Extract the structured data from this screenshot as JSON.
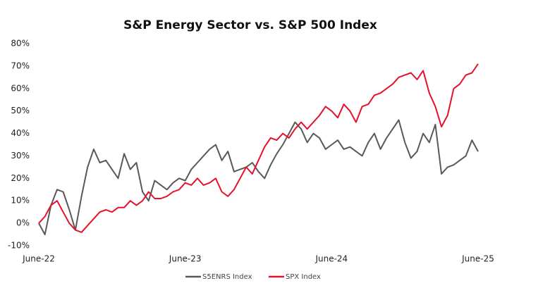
{
  "chart_data": {
    "type": "line",
    "title": "S&P Energy Sector vs. S&P 500 Index",
    "categories": [
      "June-22",
      null,
      null,
      null,
      null,
      null,
      null,
      null,
      null,
      null,
      null,
      null,
      null,
      null,
      null,
      null,
      null,
      null,
      null,
      null,
      null,
      null,
      null,
      null,
      "June-23",
      null,
      null,
      null,
      null,
      null,
      null,
      null,
      null,
      null,
      null,
      null,
      null,
      null,
      null,
      null,
      null,
      null,
      null,
      null,
      null,
      null,
      null,
      null,
      "June-24",
      null,
      null,
      null,
      null,
      null,
      null,
      null,
      null,
      null,
      null,
      null,
      null,
      null,
      null,
      null,
      null,
      null,
      null,
      null,
      null,
      null,
      null,
      null,
      "June-25"
    ],
    "series": [
      {
        "name": "S5ENRS Index",
        "color": "#595959",
        "values": [
          0,
          -5,
          8,
          15,
          14,
          6,
          -3,
          12,
          25,
          33,
          27,
          28,
          24,
          20,
          31,
          24,
          27,
          14,
          10,
          19,
          17,
          15,
          18,
          20,
          19,
          24,
          27,
          30,
          33,
          35,
          28,
          32,
          23,
          24,
          25,
          27,
          23,
          20,
          26,
          31,
          35,
          40,
          45,
          42,
          36,
          40,
          38,
          33,
          35,
          37,
          33,
          34,
          32,
          30,
          36,
          40,
          33,
          38,
          42,
          46,
          36,
          29,
          32,
          40,
          36,
          44,
          22,
          25,
          26,
          28,
          30,
          37,
          32
        ]
      },
      {
        "name": "SPX Index",
        "color": "#e8112d",
        "values": [
          0,
          3,
          8,
          10,
          5,
          0,
          -3,
          -4,
          -1,
          2,
          5,
          6,
          5,
          7,
          7,
          10,
          8,
          10,
          14,
          11,
          11,
          12,
          14,
          15,
          18,
          17,
          20,
          17,
          18,
          20,
          14,
          12,
          15,
          20,
          25,
          22,
          28,
          34,
          38,
          37,
          40,
          38,
          42,
          45,
          42,
          45,
          48,
          52,
          50,
          47,
          53,
          50,
          45,
          52,
          53,
          57,
          58,
          60,
          62,
          65,
          66,
          67,
          64,
          68,
          58,
          52,
          43,
          48,
          60,
          62,
          66,
          67,
          71
        ]
      }
    ],
    "ylim": [
      -10,
      80
    ],
    "yticks": [
      {
        "value": -10,
        "label": "-10%"
      },
      {
        "value": 0,
        "label": "0%"
      },
      {
        "value": 10,
        "label": "10%"
      },
      {
        "value": 20,
        "label": "20%"
      },
      {
        "value": 30,
        "label": "30%"
      },
      {
        "value": 40,
        "label": "40%"
      },
      {
        "value": 50,
        "label": "50%"
      },
      {
        "value": 60,
        "label": "60%"
      },
      {
        "value": 70,
        "label": "70%"
      },
      {
        "value": 80,
        "label": "80%"
      }
    ],
    "grid": false,
    "legend": "bottom"
  }
}
